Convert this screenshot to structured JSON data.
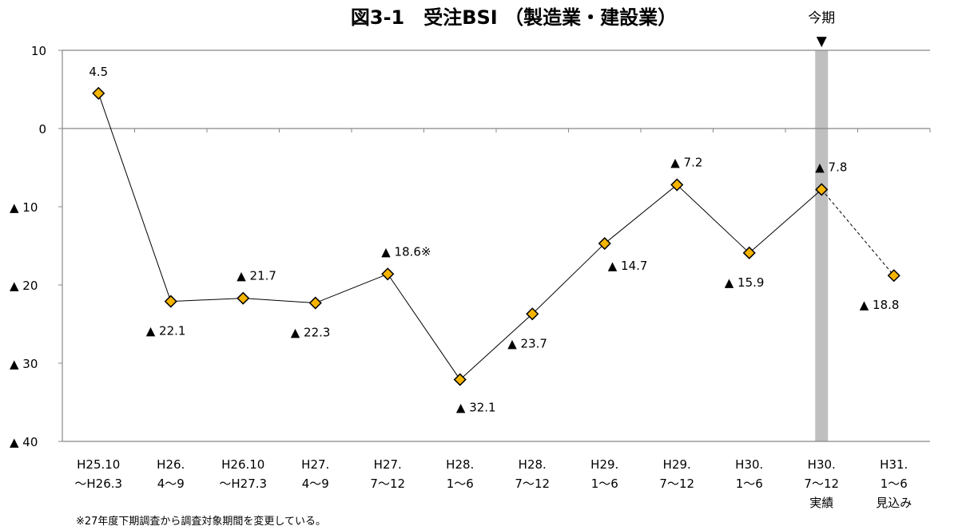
{
  "chart_data": {
    "type": "line",
    "title": "図3-1　受注BSI （製造業・建設業）",
    "current_marker": {
      "label": "今期",
      "symbol": "▼",
      "index": 10,
      "band_color": "#bfbfbf"
    },
    "categories": [
      [
        "H25.10",
        "～H26.3"
      ],
      [
        "H26.",
        "4～9"
      ],
      [
        "H26.10",
        "～H27.3"
      ],
      [
        "H27.",
        "4～9"
      ],
      [
        "H27.",
        "7～12"
      ],
      [
        "H28.",
        "1～6"
      ],
      [
        "H28.",
        "7～12"
      ],
      [
        "H29.",
        "1～6"
      ],
      [
        "H29.",
        "7～12"
      ],
      [
        "H30.",
        "1～6"
      ],
      [
        "H30.",
        "7～12",
        "実績"
      ],
      [
        "H31.",
        "1～6",
        "見込み"
      ]
    ],
    "values": [
      4.5,
      -22.1,
      -21.7,
      -22.3,
      -18.6,
      -32.1,
      -23.7,
      -14.7,
      -7.2,
      -15.9,
      -7.8,
      -18.8
    ],
    "data_labels": [
      "4.5",
      "▲ 22.1",
      "▲ 21.7",
      "▲ 22.3",
      "▲ 18.6※",
      "▲ 32.1",
      "▲ 23.7",
      "▲ 14.7",
      "▲ 7.2",
      "▲ 15.9",
      "▲ 7.8",
      "▲ 18.8"
    ],
    "dashed_last_segment": true,
    "ylim": [
      -40,
      10
    ],
    "yticks": [
      10,
      0,
      -10,
      -20,
      -30,
      -40
    ],
    "ytick_labels": [
      "10",
      "0",
      "▲ 10",
      "▲ 20",
      "▲ 30",
      "▲ 40"
    ],
    "marker_color": "#f5b400",
    "marker_stroke": "#000000",
    "line_color": "#000000",
    "grid": false,
    "note": "※27年度下期調査から調査対象期間を変更している。"
  }
}
